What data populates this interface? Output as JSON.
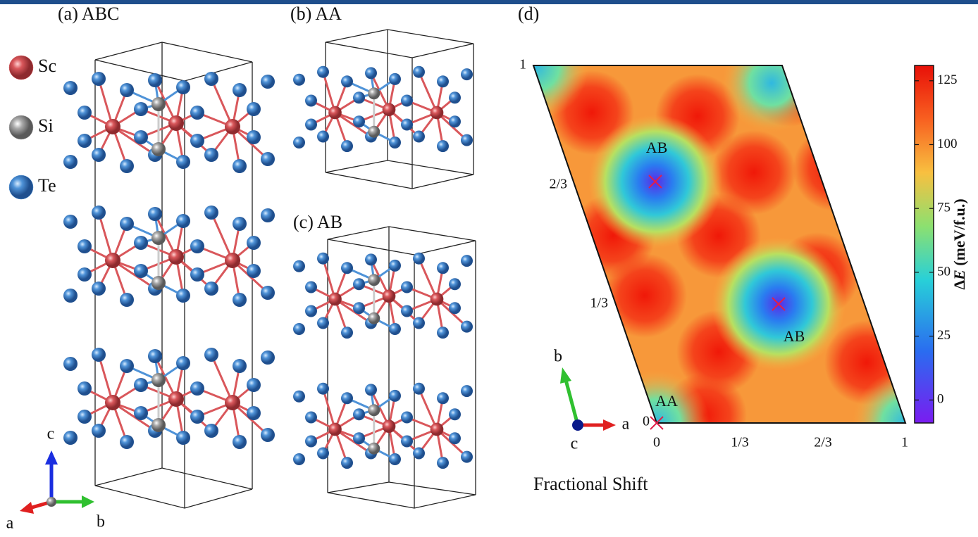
{
  "panels": {
    "a": {
      "label": "(a) ABC"
    },
    "b": {
      "label": "(b) AA"
    },
    "c": {
      "label": "(c) AB"
    },
    "d": {
      "label": "(d)"
    }
  },
  "legend": [
    {
      "element": "Sc",
      "color": "#d9575b"
    },
    {
      "element": "Si",
      "color": "#a9a9a9"
    },
    {
      "element": "Te",
      "color": "#4f93d8"
    }
  ],
  "axes_a": {
    "c": "c",
    "a": "a",
    "b": "b"
  },
  "axes_d": {
    "b": "b",
    "a": "a",
    "c": "c"
  },
  "map": {
    "x_labels": [
      "0",
      "1/3",
      "2/3",
      "1"
    ],
    "y_labels": [
      "0",
      "1/3",
      "2/3",
      "1"
    ],
    "x_title": "Fractional Shift",
    "points": [
      {
        "label": "AA"
      },
      {
        "label": "AB"
      },
      {
        "label": "AB"
      }
    ],
    "colorbar": {
      "lim": [
        -9,
        131
      ],
      "ticks": [
        0,
        25,
        50,
        75,
        100,
        125
      ],
      "label_symbol": "Δ",
      "label_var": "E",
      "label_unit": " (meV/f.u.)"
    }
  }
}
